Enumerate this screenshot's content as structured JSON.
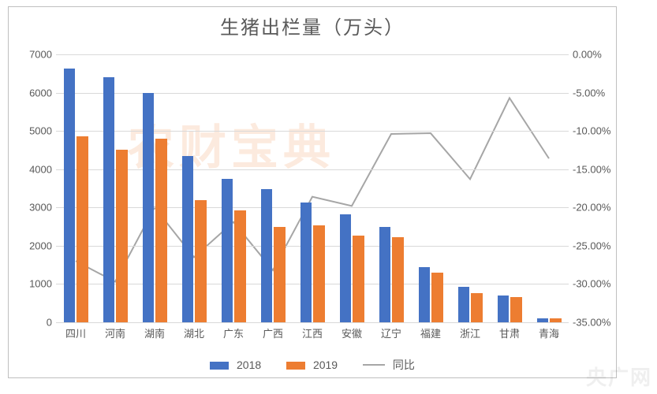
{
  "chart": {
    "type": "bar+line",
    "title": "生猪出栏量（万头）",
    "title_fontsize": 24,
    "title_color": "#595959",
    "background_color": "#ffffff",
    "grid_color": "#d9d9d9",
    "border_color": "#bfbfbf",
    "categories": [
      "四川",
      "河南",
      "湖南",
      "湖北",
      "广东",
      "广西",
      "江西",
      "安徽",
      "辽宁",
      "福建",
      "浙江",
      "甘肃",
      "青海"
    ],
    "series": [
      {
        "name": "2018",
        "type": "bar",
        "color": "#4472c4",
        "values": [
          6640,
          6400,
          6000,
          4350,
          3750,
          3470,
          3120,
          2830,
          2490,
          1450,
          920,
          700,
          110
        ]
      },
      {
        "name": "2019",
        "type": "bar",
        "color": "#ed7d31",
        "values": [
          4850,
          4500,
          4800,
          3200,
          2930,
          2490,
          2540,
          2270,
          2230,
          1300,
          770,
          660,
          95
        ]
      },
      {
        "name": "同比",
        "type": "line",
        "color": "#a6a6a6",
        "line_width": 2,
        "values": [
          -27.0,
          -29.7,
          -20.0,
          -26.5,
          -21.9,
          -28.2,
          -18.6,
          -19.8,
          -10.4,
          -10.3,
          -16.3,
          -5.7,
          -13.6
        ]
      }
    ],
    "y_left": {
      "min": 0,
      "max": 7000,
      "step": 1000,
      "labels": [
        "0",
        "1000",
        "2000",
        "3000",
        "4000",
        "5000",
        "6000",
        "7000"
      ]
    },
    "y_right": {
      "min": -35,
      "max": 0,
      "step": 5,
      "labels": [
        "0.00%",
        "-5.00%",
        "-10.00%",
        "-15.00%",
        "-20.00%",
        "-25.00%",
        "-30.00%",
        "-35.00%"
      ]
    },
    "bar_group_width": 0.62,
    "bar_gap_within": 0.04,
    "label_fontsize": 13,
    "legend_labels": [
      "2018",
      "2019",
      "同比"
    ]
  },
  "watermark_center": "农财宝典",
  "watermark_center_color": "rgba(237,125,49,0.16)",
  "watermark_center_fontsize": 60,
  "watermark_br": "央广网"
}
